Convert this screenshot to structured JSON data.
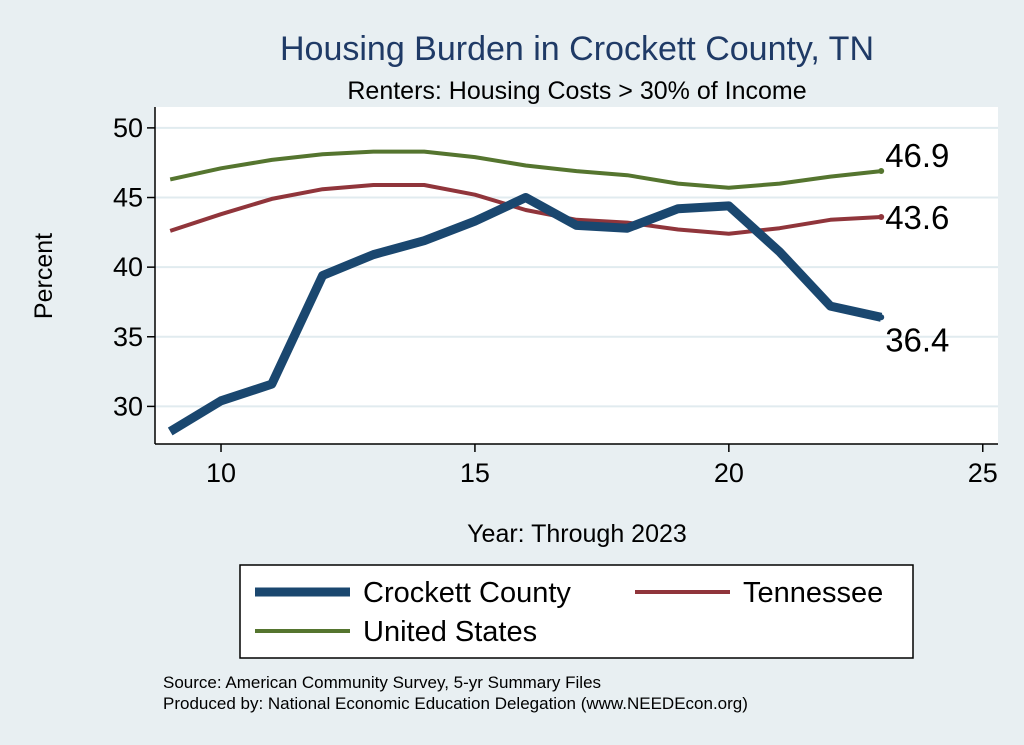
{
  "chart_data": {
    "type": "line",
    "title": "Housing Burden in Crockett County, TN",
    "subtitle": "Renters: Housing Costs > 30% of Income",
    "xlabel": "Year: Through 2023",
    "ylabel": "Percent",
    "xlim": [
      8.7,
      25.3
    ],
    "ylim": [
      27.3,
      51.5
    ],
    "xticks": [
      10,
      15,
      20,
      25
    ],
    "yticks": [
      30,
      35,
      40,
      45,
      50
    ],
    "grid": true,
    "legend_position": "bottom",
    "x": [
      9,
      10,
      11,
      12,
      13,
      14,
      15,
      16,
      17,
      18,
      19,
      20,
      21,
      22,
      23
    ],
    "series": [
      {
        "name": "Crockett County",
        "color": "#1a476f",
        "values": [
          28.2,
          30.4,
          31.6,
          39.4,
          40.9,
          41.9,
          43.3,
          45.0,
          43.0,
          42.8,
          44.2,
          44.4,
          41.1,
          37.2,
          36.4
        ],
        "end_label": "36.4"
      },
      {
        "name": "Tennessee",
        "color": "#90353b",
        "values": [
          42.6,
          43.8,
          44.9,
          45.6,
          45.9,
          45.9,
          45.2,
          44.1,
          43.4,
          43.2,
          42.7,
          42.4,
          42.8,
          43.4,
          43.6
        ],
        "end_label": "43.6"
      },
      {
        "name": "United States",
        "color": "#55752f",
        "values": [
          46.3,
          47.1,
          47.7,
          48.1,
          48.3,
          48.3,
          47.9,
          47.3,
          46.9,
          46.6,
          46.0,
          45.7,
          46.0,
          46.5,
          46.9
        ],
        "end_label": "46.9"
      }
    ]
  },
  "source": {
    "line1": "Source: American Community Survey, 5-yr Summary Files",
    "line2": "Produced by: National Economic Education Delegation (www.NEEDEcon.org)"
  }
}
